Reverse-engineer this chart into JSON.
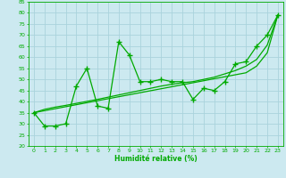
{
  "x": [
    0,
    1,
    2,
    3,
    4,
    5,
    6,
    7,
    8,
    9,
    10,
    11,
    12,
    13,
    14,
    15,
    16,
    17,
    18,
    19,
    20,
    21,
    22,
    23
  ],
  "y_main": [
    35,
    29,
    29,
    30,
    47,
    55,
    38,
    37,
    67,
    61,
    49,
    49,
    50,
    49,
    49,
    41,
    46,
    45,
    49,
    57,
    58,
    65,
    70,
    79
  ],
  "y_trend1": [
    35,
    35.9,
    36.8,
    37.7,
    38.6,
    39.5,
    40.4,
    41.3,
    42.2,
    43.1,
    44.0,
    44.9,
    45.8,
    46.7,
    47.6,
    48.5,
    49.4,
    50.3,
    51.2,
    52.1,
    53.0,
    56.0,
    62.0,
    79.0
  ],
  "y_trend2": [
    35,
    36.5,
    37.5,
    38.3,
    39.2,
    40.1,
    41.0,
    42.0,
    43.0,
    44.0,
    45.0,
    46.0,
    47.0,
    47.8,
    48.5,
    49.0,
    50.0,
    51.0,
    52.5,
    54.0,
    56.0,
    59.0,
    65.5,
    79.0
  ],
  "background_color": "#cce9f0",
  "grid_color": "#aad3dc",
  "line_color": "#00aa00",
  "xlabel": "Humidité relative (%)",
  "ylim": [
    20,
    85
  ],
  "xlim_min": -0.5,
  "xlim_max": 23.5,
  "yticks": [
    20,
    25,
    30,
    35,
    40,
    45,
    50,
    55,
    60,
    65,
    70,
    75,
    80,
    85
  ],
  "xticks": [
    0,
    1,
    2,
    3,
    4,
    5,
    6,
    7,
    8,
    9,
    10,
    11,
    12,
    13,
    14,
    15,
    16,
    17,
    18,
    19,
    20,
    21,
    22,
    23
  ],
  "xlabel_fontsize": 5.5,
  "tick_fontsize": 4.5
}
